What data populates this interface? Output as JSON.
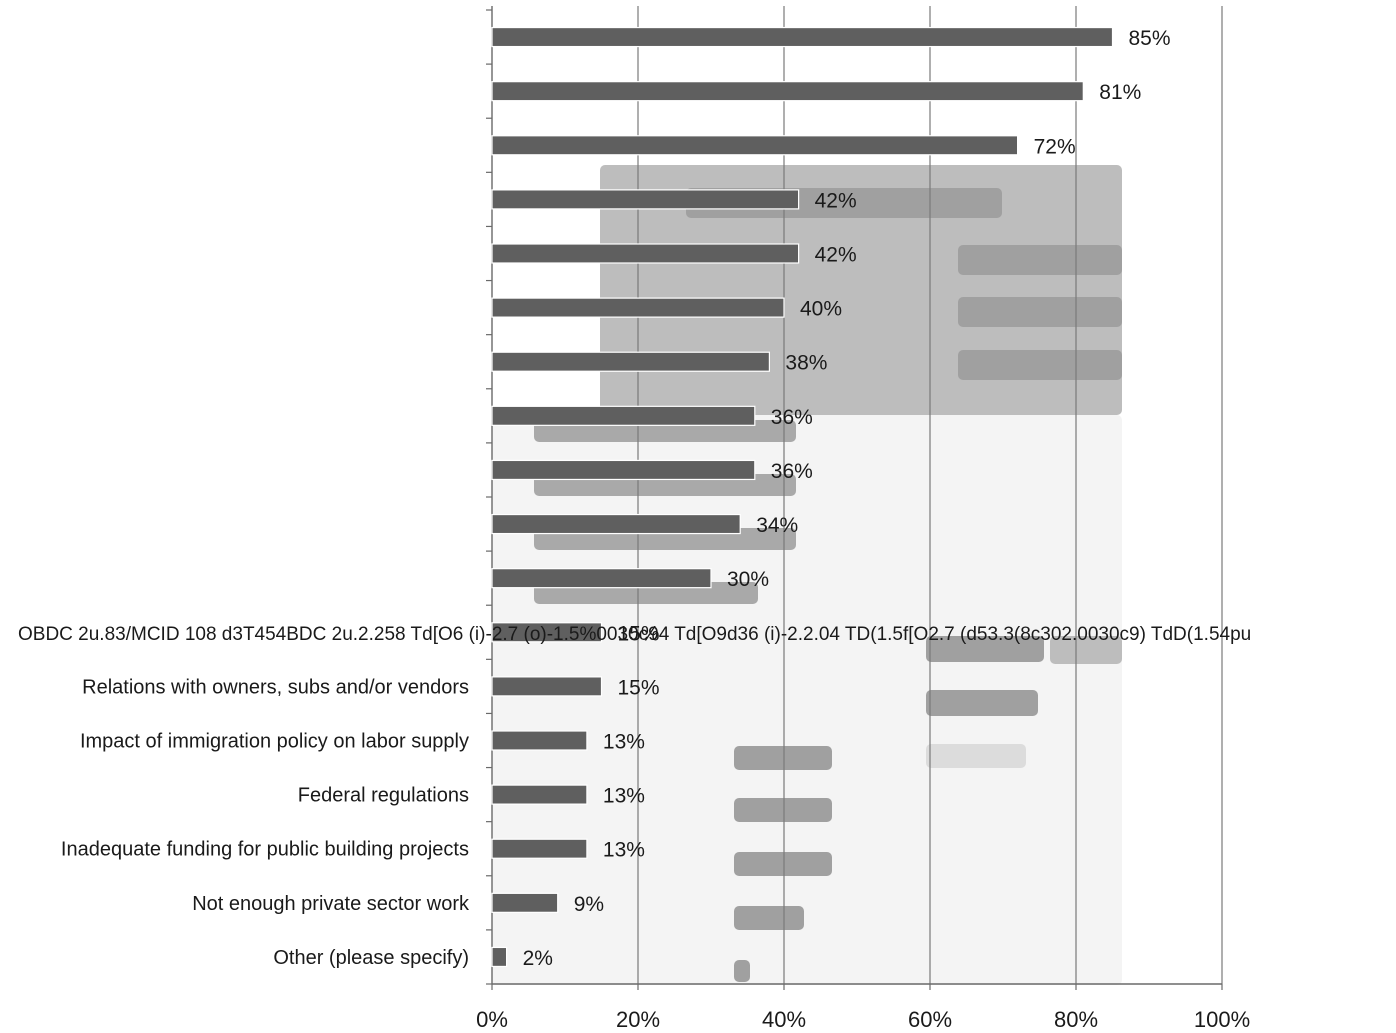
{
  "chart_data": {
    "type": "bar",
    "orientation": "horizontal",
    "title": "",
    "xlabel": "",
    "ylabel": "",
    "xlim": [
      0,
      1
    ],
    "x_ticks": [
      "0%",
      "20%",
      "40%",
      "60%",
      "80%",
      "100%"
    ],
    "grid": true,
    "legend": "none",
    "bar_color": "#5f5f5f",
    "categories": [
      "",
      "",
      "",
      "",
      "",
      "",
      "",
      "",
      "",
      "",
      "",
      "",
      "Relations with owners, subs and/or vendors",
      "Impact of immigration policy on labor supply",
      "Federal regulations",
      "Inadequate funding for public building projects",
      "Not enough private sector work",
      "Other (please specify)"
    ],
    "values": [
      0.85,
      0.81,
      0.72,
      0.42,
      0.42,
      0.4,
      0.38,
      0.36,
      0.36,
      0.34,
      0.3,
      0.15,
      0.15,
      0.13,
      0.13,
      0.13,
      0.09,
      0.02
    ],
    "value_labels": [
      "85%",
      "81%",
      "72%",
      "42%",
      "42%",
      "40%",
      "38%",
      "36%",
      "36%",
      "34%",
      "30%",
      "15%",
      "15%",
      "13%",
      "13%",
      "13%",
      "9%",
      "2%"
    ],
    "garbled_text": "OBDC 2u.83/MCID 108 d3T454BDC 2u.2.258 Td[O6 (i)-2.7 (o)-1.5%0030c94 Td[O9d36 (i)-2.2.04 TD(1.5f[O2.7 (d53.3(8c302.0030c9) TdD(1.54pu"
  }
}
